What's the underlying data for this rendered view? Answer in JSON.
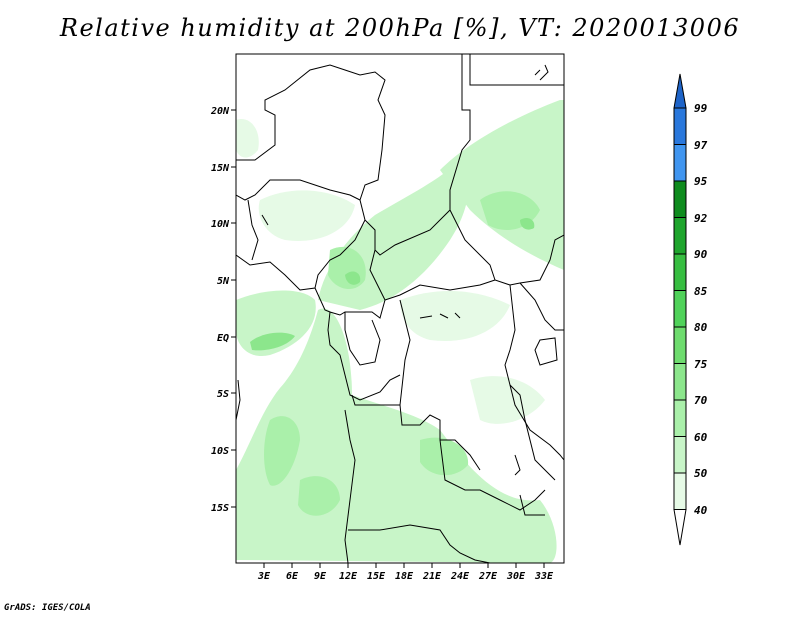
{
  "title": "Relative humidity at 200hPa [%], VT: 2020013006",
  "credit": "GrADS: IGES/COLA",
  "map": {
    "lat_labels": [
      "20N",
      "15N",
      "10N",
      "5N",
      "EQ",
      "5S",
      "10S",
      "15S"
    ],
    "lon_labels": [
      "3E",
      "6E",
      "9E",
      "12E",
      "15E",
      "18E",
      "21E",
      "24E",
      "27E",
      "30E",
      "33E"
    ]
  },
  "colorbar": {
    "levels": [
      "99",
      "97",
      "95",
      "92",
      "90",
      "85",
      "80",
      "75",
      "70",
      "60",
      "50",
      "40"
    ],
    "colors": {
      "above_99": "#1e64c8",
      "97_99": "#2a78dc",
      "95_97": "#4196f0",
      "92_95": "#0f8c1e",
      "90_92": "#1ea52d",
      "85_90": "#37be41",
      "80_85": "#50d25a",
      "75_80": "#6edc6e",
      "70_75": "#8ce68c",
      "60_70": "#aaf0aa",
      "50_60": "#c8f5c8",
      "40_50": "#e6fae6",
      "below_40": "#ffffff"
    }
  }
}
